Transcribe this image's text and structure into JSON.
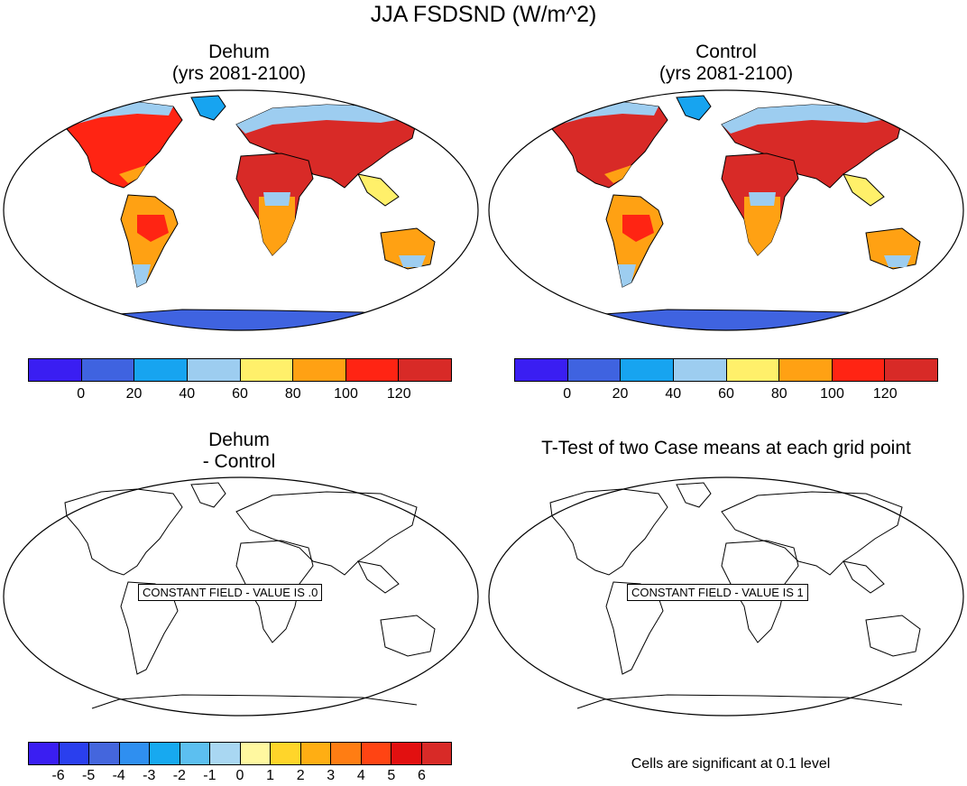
{
  "main_title": "JJA FSDSND (W/m^2)",
  "panels": {
    "p1": {
      "title_line1": "Dehum",
      "title_line2": "(yrs 2081-2100)"
    },
    "p2": {
      "title_line1": "Control",
      "title_line2": "(yrs 2081-2100)"
    },
    "p3": {
      "title_line1": "Dehum",
      "title_line2": "- Control",
      "constant_label": "CONSTANT FIELD - VALUE IS .0"
    },
    "p4": {
      "title": "T-Test of two Case means at each grid point",
      "constant_label": "CONSTANT FIELD - VALUE IS 1"
    }
  },
  "footnote": "Cells are significant at 0.1 level",
  "colorbars": {
    "abs": {
      "colors": [
        "#3a1ef2",
        "#3f63e0",
        "#17a4f0",
        "#9dcdf0",
        "#fff06a",
        "#ffa113",
        "#ff2413",
        "#d82a27"
      ],
      "labels": [
        "0",
        "20",
        "40",
        "60",
        "80",
        "100",
        "120"
      ]
    },
    "diff": {
      "colors": [
        "#3a1ef2",
        "#2a3fee",
        "#4466dd",
        "#2f8ff0",
        "#17a9f0",
        "#5cbff0",
        "#a9d7f2",
        "#fff8a0",
        "#ffd52a",
        "#ffae13",
        "#ff7d13",
        "#ff4413",
        "#e21010",
        "#d82a27"
      ],
      "labels": [
        "-6",
        "-5",
        "-4",
        "-3",
        "-2",
        "-1",
        "0",
        "1",
        "2",
        "3",
        "4",
        "5",
        "6"
      ]
    }
  }
}
